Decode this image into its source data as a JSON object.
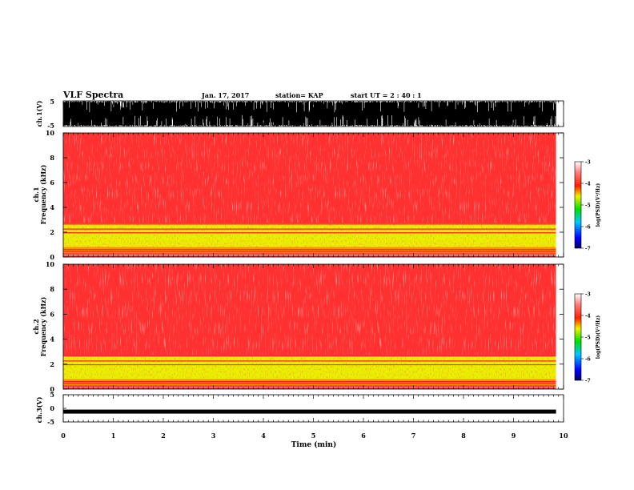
{
  "header": {
    "title": "VLF Spectra",
    "date": "Jan. 17, 2017",
    "station": "station= KAP",
    "start": "start  UT =   2 : 40 : 1"
  },
  "colors": {
    "spectrogram_high": "#ff2020",
    "spectrogram_low": "#f2f000",
    "waveform": "#000000",
    "axis": "#000000"
  },
  "chart_data": [
    {
      "type": "line",
      "name": "ch.1 waveform",
      "ylabel": "ch.1(V)",
      "ylim": [
        -5,
        5
      ],
      "yticks": [
        "5",
        "-5"
      ],
      "xlim": [
        0,
        10
      ],
      "data_end_min": 9.85,
      "description_values": "dense black waveform, nearly saturated between -5 and 5 V"
    },
    {
      "type": "heatmap",
      "name": "ch.1 spectrogram",
      "ylabel": "ch.1\nFrequency (kHz)",
      "ylim": [
        0,
        10
      ],
      "yticks": [
        "0",
        "2",
        "4",
        "6",
        "8",
        "10"
      ],
      "xlim": [
        0,
        10
      ],
      "data_end_min": 9.85,
      "colorbar": {
        "label": "log(PSD)(V²/Hz)",
        "range": [
          -7,
          -3
        ],
        "ticks": [
          "-3",
          "-4",
          "-5",
          "-6",
          "-7"
        ]
      },
      "bands": [
        {
          "freq_khz": [
            0.0,
            0.3
          ],
          "log_psd": -3.4
        },
        {
          "freq_khz": [
            0.3,
            0.8
          ],
          "log_psd": -4.3
        },
        {
          "freq_khz": [
            0.8,
            2.7
          ],
          "log_psd": -4.6
        },
        {
          "freq_khz": [
            2.7,
            10.0
          ],
          "log_psd": -3.6
        }
      ]
    },
    {
      "type": "heatmap",
      "name": "ch.2 spectrogram",
      "ylabel": "ch.2\nFrequency (kHz)",
      "ylim": [
        0,
        10
      ],
      "yticks": [
        "0",
        "2",
        "4",
        "6",
        "8",
        "10"
      ],
      "xlim": [
        0,
        10
      ],
      "data_end_min": 9.85,
      "colorbar": {
        "label": "log(PSD)(V²/Hz)",
        "range": [
          -7,
          -3
        ],
        "ticks": [
          "-3",
          "-4",
          "-5",
          "-6",
          "-7"
        ]
      },
      "bands": [
        {
          "freq_khz": [
            0.0,
            0.3
          ],
          "log_psd": -3.4
        },
        {
          "freq_khz": [
            0.3,
            0.8
          ],
          "log_psd": -4.4
        },
        {
          "freq_khz": [
            0.8,
            2.7
          ],
          "log_psd": -4.6
        },
        {
          "freq_khz": [
            2.7,
            10.0
          ],
          "log_psd": -3.5
        }
      ]
    },
    {
      "type": "line",
      "name": "ch.3 waveform",
      "ylabel": "ch.3(V)",
      "ylim": [
        -5,
        5
      ],
      "yticks": [
        "5",
        "0",
        "-5"
      ],
      "xlim": [
        0,
        10
      ],
      "xlabel": "Time (min)",
      "xticks": [
        "0",
        "1",
        "2",
        "3",
        "4",
        "5",
        "6",
        "7",
        "8",
        "9",
        "10"
      ],
      "data_end_min": 9.85,
      "level_v": -1.2
    }
  ]
}
